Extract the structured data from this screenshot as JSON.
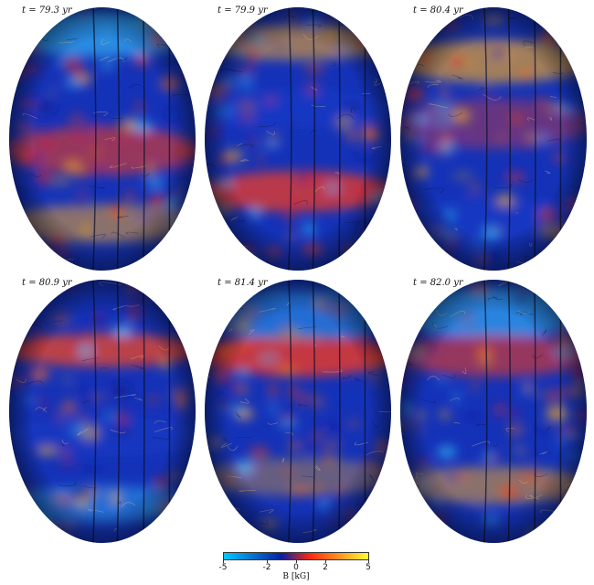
{
  "panels": [
    {
      "label": "t = 79.3 yr"
    },
    {
      "label": "t = 79.9 yr"
    },
    {
      "label": "t = 80.4 yr"
    },
    {
      "label": "t = 80.9 yr"
    },
    {
      "label": "t = 81.4 yr"
    },
    {
      "label": "t = 82.0 yr"
    }
  ],
  "colorbar": {
    "label": "B [kG]",
    "ticks": [
      "-5",
      "-2",
      "0",
      "2",
      "5"
    ],
    "colors": [
      "#00c8ff",
      "#0a1f9e",
      "#ff2a10",
      "#ffff30"
    ]
  }
}
